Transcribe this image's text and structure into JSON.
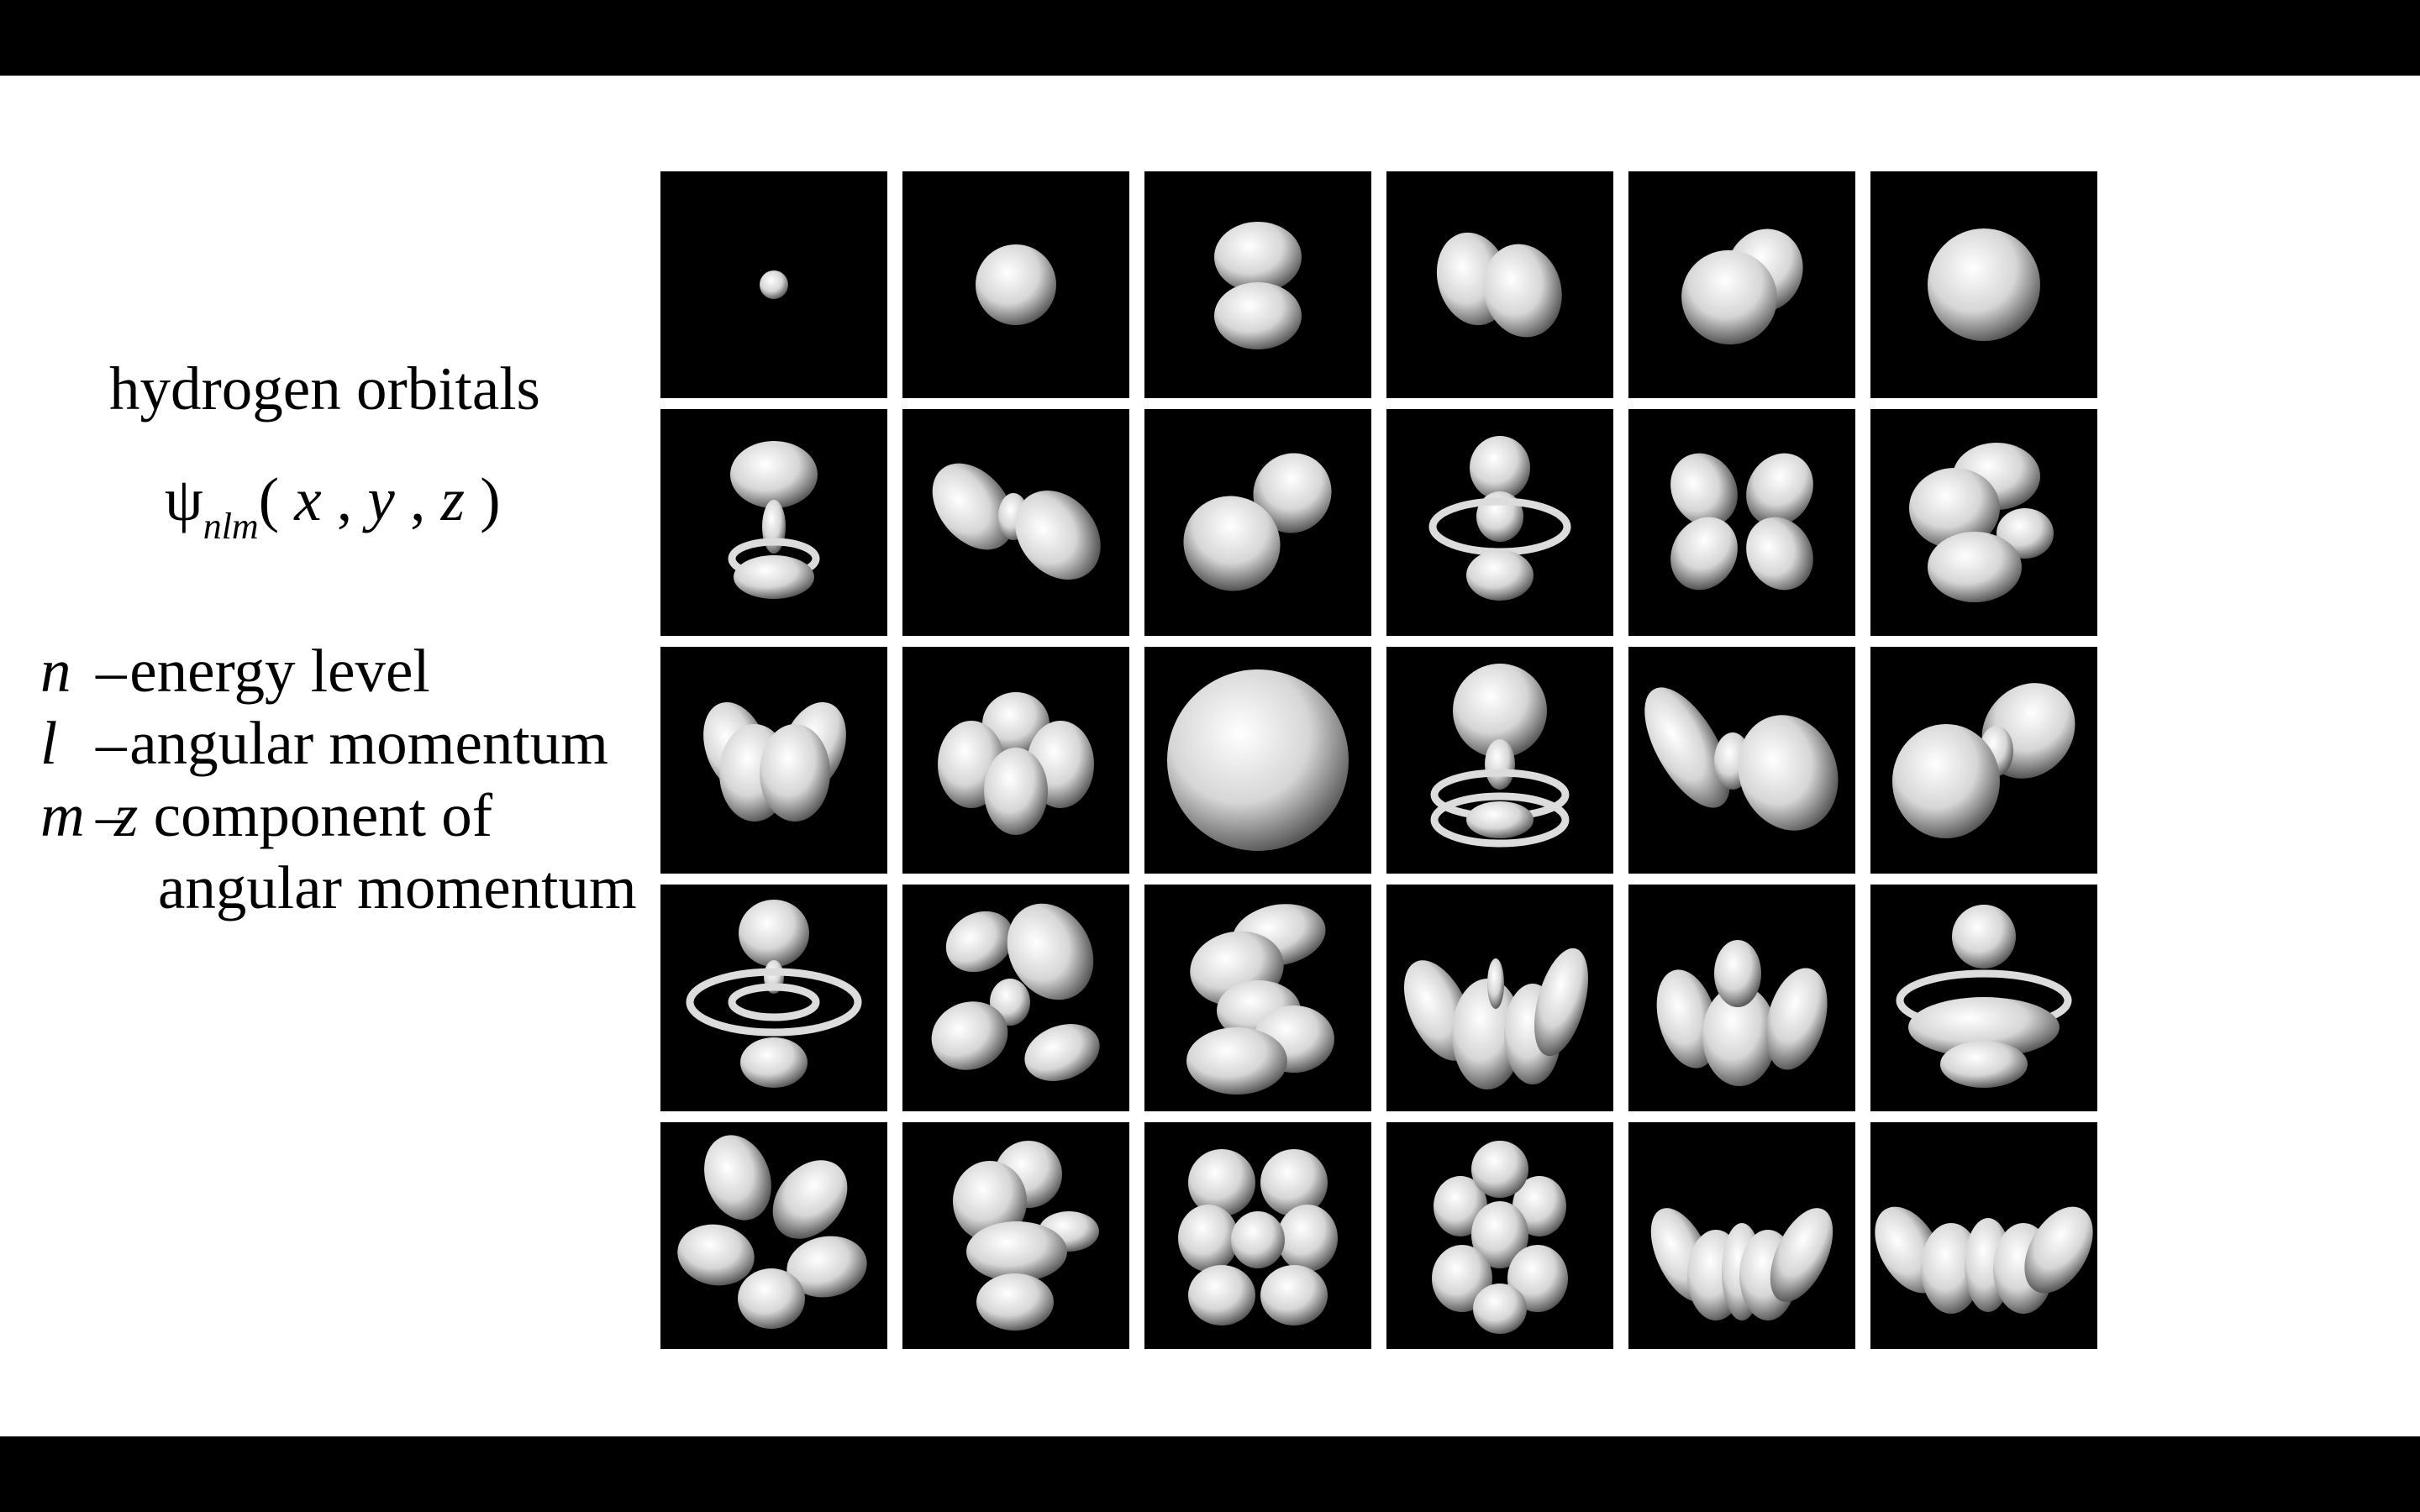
{
  "slide": {
    "title": "hydrogen orbitals",
    "wavefunction": {
      "symbol": "ψ",
      "subscript": "nlm",
      "args_open": "(",
      "x": "x",
      "y": "y",
      "z": "z",
      "comma": ",",
      "args_close": ")"
    },
    "legend": [
      {
        "symbol": "n",
        "dash": "–",
        "text": " energy level"
      },
      {
        "symbol": "l",
        "dash": "–",
        "text": " angular momentum"
      },
      {
        "symbol": "m",
        "dash": "–",
        "text_italic": "z",
        "text": " component of"
      },
      {
        "continuation": "angular momentum"
      }
    ]
  },
  "orbital_grid": {
    "rows": 5,
    "columns": 6,
    "background": "#000000",
    "shade": "#ffffff",
    "tiles": [
      "sphere-tiny",
      "sphere-small",
      "lobes-vertical",
      "lobes-tilted-left",
      "lobes-tilted-right",
      "sphere-medium",
      "dz2-with-ring",
      "lobes-diagonal-node",
      "lobes-diagonal-ring",
      "dz2-large",
      "cloverleaf",
      "stacked-lobes",
      "paired-lobes",
      "four-lobes",
      "sphere-large",
      "dz2-nested",
      "lobes-ringed-left",
      "lobes-ringed-right",
      "dz2-double-ring",
      "multi-lobe-diagonal",
      "multi-lobe-stacked",
      "multi-lobe-fan",
      "multi-lobe-fan-2",
      "dz2-torus",
      "flower-diagonal",
      "flower-stacked",
      "flower-cross",
      "flower-six",
      "fan-five",
      "fan-six"
    ]
  }
}
